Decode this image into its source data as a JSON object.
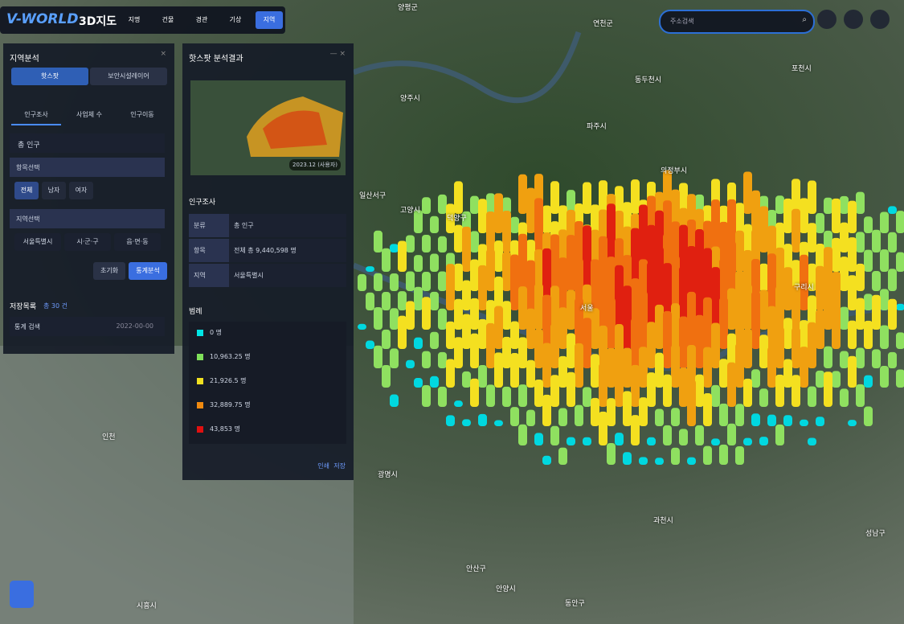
{
  "header": {
    "logo": "V-WORLD",
    "subtitle": "3D지도",
    "nav": [
      "지명",
      "건물",
      "경관",
      "기상",
      "지역"
    ],
    "search_placeholder": "주소검색"
  },
  "analysis_panel": {
    "title": "지역분석",
    "tabs": [
      "핫스팟",
      "보안시설레이어"
    ],
    "sub_tabs": [
      "인구조사",
      "사업체 수",
      "인구이동"
    ],
    "select": "총 인구",
    "item_section": "항목선택",
    "items": [
      "전체",
      "남자",
      "여자"
    ],
    "region_section": "지역선택",
    "regions": [
      "서울특별시",
      "시·군·구",
      "읍·면·동"
    ],
    "buttons": [
      "초기화",
      "통계분석"
    ],
    "saved_title": "저장목록",
    "saved_count": "총 30 건",
    "saved_rows": [
      {
        "name": "통계 검색",
        "date": "2022-00-00"
      }
    ]
  },
  "result_panel": {
    "title": "핫스팟 분석결과",
    "thumbnail_caption": "2023.12 (사용자)",
    "section": "인구조사",
    "table": [
      [
        "분류",
        "총 인구"
      ],
      [
        "항목",
        "전체 총 9,440,598 명"
      ],
      [
        "지역",
        "서울특별시"
      ]
    ],
    "legend_title": "범례",
    "legend": [
      "0 명",
      "10,963.25 명",
      "21,926.5 명",
      "32,889.75 명",
      "43,853 명"
    ],
    "footer": [
      "인쇄",
      "저장"
    ]
  },
  "map_labels": [
    "양평군",
    "연천군",
    "포천시",
    "동두천시",
    "양주시",
    "파주시",
    "의정부시",
    "일산서구",
    "고양시",
    "덕양구",
    "서울",
    "구리시",
    "인천",
    "광명시",
    "과천시",
    "성남구",
    "안산구",
    "안양시",
    "동안구",
    "시흥시"
  ]
}
